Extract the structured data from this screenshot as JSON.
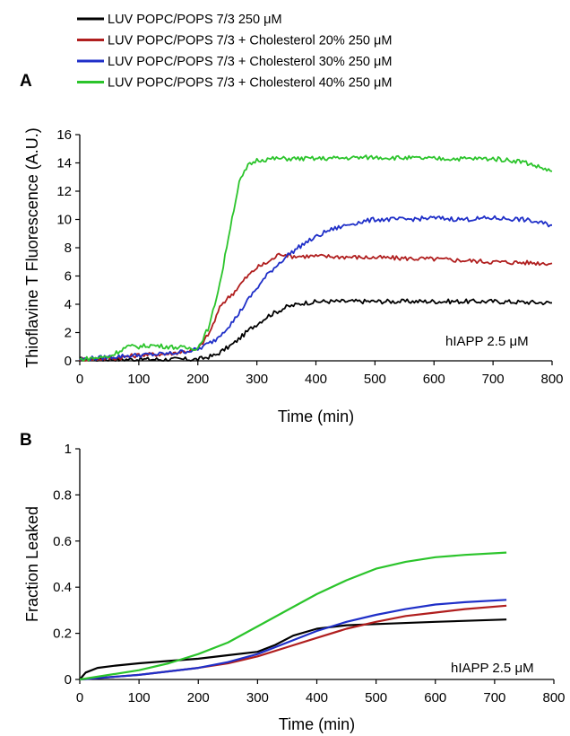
{
  "legend": [
    {
      "label": "LUV POPC/POPS 7/3 250 μM",
      "color": "#000000"
    },
    {
      "label": "LUV POPC/POPS 7/3 + Cholesterol 20% 250 μM",
      "color": "#b01e1e"
    },
    {
      "label": "LUV POPC/POPS 7/3 + Cholesterol 30% 250 μM",
      "color": "#1f2fc8"
    },
    {
      "label": "LUV POPC/POPS 7/3 + Cholesterol 40% 250 μM",
      "color": "#2bc42b"
    }
  ],
  "chart_data": [
    {
      "panel": "A",
      "type": "line",
      "xlabel": "Time (min)",
      "ylabel": "Thioflavine T Fluorescence (A.U.)",
      "xlim": [
        0,
        800
      ],
      "ylim": [
        0,
        16
      ],
      "xticks": [
        0,
        100,
        200,
        300,
        400,
        500,
        600,
        700,
        800
      ],
      "yticks": [
        0,
        2,
        4,
        6,
        8,
        10,
        12,
        14,
        16
      ],
      "grid": false,
      "annotation": "hIAPP 2.5 μM",
      "series": [
        {
          "legend_index": 0,
          "color": "#000000",
          "x": [
            0,
            100,
            200,
            230,
            260,
            290,
            320,
            350,
            380,
            410,
            450,
            500,
            600,
            700,
            800
          ],
          "y": [
            0.1,
            0.1,
            0.1,
            0.4,
            1.2,
            2.3,
            3.2,
            3.8,
            4.1,
            4.2,
            4.2,
            4.2,
            4.2,
            4.2,
            4.1
          ]
        },
        {
          "legend_index": 1,
          "color": "#b01e1e",
          "x": [
            0,
            60,
            100,
            150,
            200,
            220,
            240,
            260,
            280,
            300,
            320,
            340,
            360,
            400,
            500,
            600,
            700,
            800
          ],
          "y": [
            0.1,
            0.2,
            0.4,
            0.5,
            0.8,
            2.0,
            4.0,
            4.8,
            5.8,
            6.6,
            7.0,
            7.6,
            7.4,
            7.4,
            7.3,
            7.2,
            7.0,
            6.9
          ]
        },
        {
          "legend_index": 2,
          "color": "#1f2fc8",
          "x": [
            0,
            60,
            100,
            150,
            200,
            230,
            260,
            290,
            320,
            350,
            380,
            420,
            460,
            500,
            550,
            600,
            650,
            700,
            750,
            800
          ],
          "y": [
            0.1,
            0.3,
            0.4,
            0.5,
            0.8,
            1.5,
            2.8,
            4.6,
            6.2,
            7.4,
            8.3,
            9.2,
            9.7,
            10.0,
            10.0,
            10.1,
            10.0,
            10.1,
            10.0,
            9.6
          ]
        },
        {
          "legend_index": 3,
          "color": "#2bc42b",
          "x": [
            0,
            50,
            80,
            100,
            120,
            150,
            180,
            200,
            220,
            240,
            255,
            270,
            285,
            300,
            330,
            400,
            500,
            600,
            700,
            750,
            800
          ],
          "y": [
            0.1,
            0.3,
            1.0,
            1.0,
            1.1,
            1.0,
            0.9,
            0.9,
            2.5,
            6.0,
            9.5,
            12.6,
            13.8,
            14.2,
            14.3,
            14.3,
            14.4,
            14.3,
            14.3,
            14.1,
            13.4
          ]
        }
      ]
    },
    {
      "panel": "B",
      "type": "line",
      "xlabel": "Time (min)",
      "ylabel": "Fraction Leaked",
      "xlim": [
        0,
        800
      ],
      "ylim": [
        0,
        1
      ],
      "xticks": [
        0,
        100,
        200,
        300,
        400,
        500,
        600,
        700,
        800
      ],
      "yticks": [
        0,
        0.2,
        0.4,
        0.6,
        0.8,
        1
      ],
      "ytick_labels": [
        "0",
        "0.2",
        "0.4",
        "0.6",
        "0.8",
        "1"
      ],
      "grid": false,
      "annotation": "hIAPP 2.5 μM",
      "series": [
        {
          "legend_index": 0,
          "color": "#000000",
          "x": [
            0,
            10,
            30,
            60,
            100,
            150,
            200,
            250,
            300,
            330,
            360,
            400,
            450,
            500,
            600,
            720
          ],
          "y": [
            0.0,
            0.03,
            0.05,
            0.06,
            0.07,
            0.08,
            0.09,
            0.105,
            0.12,
            0.15,
            0.19,
            0.22,
            0.235,
            0.24,
            0.25,
            0.26
          ]
        },
        {
          "legend_index": 1,
          "color": "#b01e1e",
          "x": [
            0,
            100,
            200,
            250,
            300,
            350,
            400,
            450,
            500,
            550,
            600,
            650,
            720
          ],
          "y": [
            0.0,
            0.02,
            0.05,
            0.07,
            0.1,
            0.14,
            0.18,
            0.22,
            0.25,
            0.275,
            0.29,
            0.305,
            0.32
          ]
        },
        {
          "legend_index": 2,
          "color": "#1f2fc8",
          "x": [
            0,
            100,
            200,
            250,
            300,
            350,
            400,
            450,
            500,
            550,
            600,
            650,
            720
          ],
          "y": [
            0.0,
            0.02,
            0.05,
            0.075,
            0.11,
            0.16,
            0.21,
            0.25,
            0.28,
            0.305,
            0.325,
            0.335,
            0.345
          ]
        },
        {
          "legend_index": 3,
          "color": "#2bc42b",
          "x": [
            0,
            100,
            150,
            200,
            250,
            300,
            350,
            400,
            450,
            500,
            550,
            600,
            650,
            720
          ],
          "y": [
            0.0,
            0.04,
            0.07,
            0.11,
            0.16,
            0.23,
            0.3,
            0.37,
            0.43,
            0.48,
            0.51,
            0.53,
            0.54,
            0.55
          ]
        }
      ]
    }
  ]
}
